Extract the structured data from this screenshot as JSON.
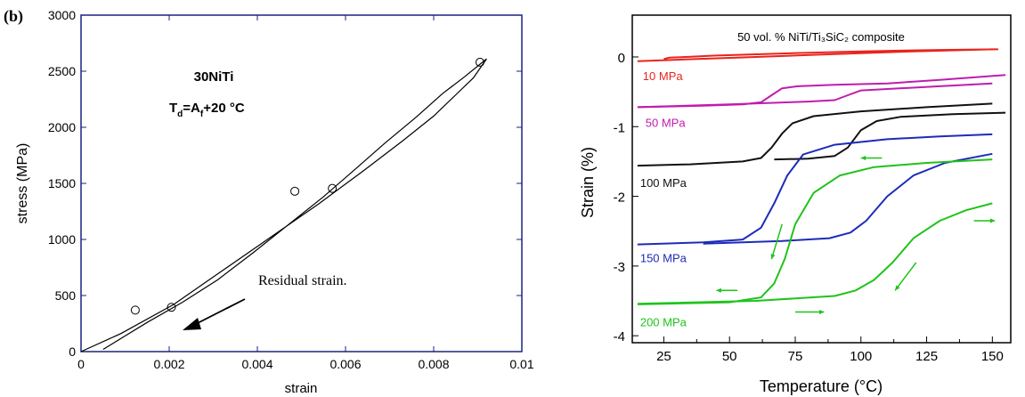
{
  "chart_data": [
    {
      "type": "line",
      "panel_label": "(b)",
      "title": "",
      "xlabel": "strain",
      "ylabel": "stress (MPa)",
      "xlim": [
        0,
        0.01
      ],
      "ylim": [
        0,
        3000
      ],
      "xticks": [
        {
          "value": 0,
          "label": "0"
        },
        {
          "value": 0.002,
          "label": "0.002"
        },
        {
          "value": 0.004,
          "label": "0.004"
        },
        {
          "value": 0.006,
          "label": "0.006"
        },
        {
          "value": 0.008,
          "label": "0.008"
        },
        {
          "value": 0.01,
          "label": "0.01"
        }
      ],
      "yticks": [
        {
          "value": 0,
          "label": "0"
        },
        {
          "value": 500,
          "label": "500"
        },
        {
          "value": 1000,
          "label": "1000"
        },
        {
          "value": 1500,
          "label": "1500"
        },
        {
          "value": 2000,
          "label": "2000"
        },
        {
          "value": 2500,
          "label": "2500"
        },
        {
          "value": 3000,
          "label": "3000"
        }
      ],
      "grid": false,
      "annotations": {
        "material": "30NiTi",
        "temp_main": "T",
        "temp_sub1": "d",
        "temp_mid": "=A",
        "temp_sub2": "f",
        "temp_end": "+20 °C",
        "arrow_text": "Residual strain."
      },
      "series": [
        {
          "color": "#000000",
          "points": [
            [
              0,
              0
            ],
            [
              0.0009,
              160
            ],
            [
              0.0021,
              420
            ],
            [
              0.0032,
              720
            ],
            [
              0.0043,
              1020
            ],
            [
              0.0054,
              1320
            ],
            [
              0.0064,
              1610
            ],
            [
              0.0073,
              1880
            ],
            [
              0.008,
              2100
            ],
            [
              0.0085,
              2290
            ],
            [
              0.0089,
              2440
            ],
            [
              0.0092,
              2610
            ],
            [
              0.0087,
              2450
            ],
            [
              0.0082,
              2300
            ],
            [
              0.0076,
              2090
            ],
            [
              0.0069,
              1860
            ],
            [
              0.0062,
              1620
            ],
            [
              0.0055,
              1380
            ],
            [
              0.0047,
              1130
            ],
            [
              0.0039,
              880
            ],
            [
              0.0031,
              640
            ],
            [
              0.0023,
              440
            ],
            [
              0.0015,
              260
            ],
            [
              0.001,
              140
            ],
            [
              0.0005,
              20
            ]
          ],
          "markers": [
            [
              0.00123,
              370
            ],
            [
              0.00205,
              395
            ],
            [
              0.00485,
              1430
            ],
            [
              0.0057,
              1455
            ],
            [
              0.00905,
              2580
            ]
          ]
        }
      ]
    },
    {
      "type": "line",
      "title": "50 vol. % NiTi/Ti₃SiC₂ composite",
      "xlabel": "Temperature (°C)",
      "ylabel": "Strain (%)",
      "xlim": [
        13,
        157
      ],
      "ylim": [
        -4.1,
        0.6
      ],
      "xticks": [
        25,
        50,
        75,
        100,
        125,
        150
      ],
      "yticks": [
        0,
        -1,
        -2,
        -3,
        -4
      ],
      "grid": false,
      "series": [
        {
          "name": "10 MPa",
          "color": "#e8241d",
          "points": [
            [
              15,
              -0.06
            ],
            [
              30,
              -0.04
            ],
            [
              60,
              0.0
            ],
            [
              90,
              0.04
            ],
            [
              120,
              0.08
            ],
            [
              150,
              0.11
            ],
            [
              152,
              0.11
            ],
            [
              130,
              0.1
            ],
            [
              100,
              0.08
            ],
            [
              70,
              0.05
            ],
            [
              45,
              0.02
            ],
            [
              27,
              -0.01
            ],
            [
              25,
              -0.03
            ]
          ]
        },
        {
          "name": "50 MPa",
          "color": "#c01cae",
          "points": [
            [
              15,
              -0.72
            ],
            [
              40,
              -0.7
            ],
            [
              55,
              -0.68
            ],
            [
              62,
              -0.65
            ],
            [
              66,
              -0.55
            ],
            [
              70,
              -0.45
            ],
            [
              76,
              -0.42
            ],
            [
              90,
              -0.4
            ],
            [
              110,
              -0.38
            ],
            [
              130,
              -0.33
            ],
            [
              155,
              -0.26
            ]
          ]
        },
        {
          "name": "50 MPa",
          "color": "#c01cae",
          "points": [
            [
              15,
              -0.72
            ],
            [
              50,
              -0.68
            ],
            [
              80,
              -0.64
            ],
            [
              90,
              -0.62
            ],
            [
              95,
              -0.55
            ],
            [
              100,
              -0.48
            ],
            [
              110,
              -0.46
            ],
            [
              130,
              -0.42
            ],
            [
              150,
              -0.38
            ]
          ]
        },
        {
          "name": "100 MPa",
          "color": "#111111",
          "points": [
            [
              15,
              -1.56
            ],
            [
              35,
              -1.54
            ],
            [
              55,
              -1.5
            ],
            [
              62,
              -1.45
            ],
            [
              66,
              -1.3
            ],
            [
              70,
              -1.1
            ],
            [
              74,
              -0.95
            ],
            [
              82,
              -0.85
            ],
            [
              100,
              -0.78
            ],
            [
              125,
              -0.72
            ],
            [
              150,
              -0.67
            ]
          ]
        },
        {
          "name": "100 MPa",
          "color": "#111111",
          "points": [
            [
              67,
              -1.47
            ],
            [
              80,
              -1.46
            ],
            [
              90,
              -1.42
            ],
            [
              95,
              -1.3
            ],
            [
              100,
              -1.05
            ],
            [
              106,
              -0.92
            ],
            [
              115,
              -0.86
            ],
            [
              135,
              -0.82
            ],
            [
              155,
              -0.8
            ]
          ]
        },
        {
          "name": "150 MPa",
          "color": "#1d2bb8",
          "points": [
            [
              15,
              -2.69
            ],
            [
              40,
              -2.66
            ],
            [
              55,
              -2.62
            ],
            [
              62,
              -2.45
            ],
            [
              67,
              -2.1
            ],
            [
              72,
              -1.7
            ],
            [
              78,
              -1.4
            ],
            [
              90,
              -1.26
            ],
            [
              110,
              -1.18
            ],
            [
              130,
              -1.14
            ],
            [
              150,
              -1.11
            ]
          ]
        },
        {
          "name": "150 MPa",
          "color": "#1d2bb8",
          "points": [
            [
              40,
              -2.68
            ],
            [
              70,
              -2.64
            ],
            [
              88,
              -2.6
            ],
            [
              96,
              -2.52
            ],
            [
              102,
              -2.35
            ],
            [
              110,
              -2.0
            ],
            [
              120,
              -1.7
            ],
            [
              132,
              -1.52
            ],
            [
              150,
              -1.39
            ]
          ]
        },
        {
          "name": "200 MPa",
          "color": "#1fc31a",
          "points": [
            [
              15,
              -3.55
            ],
            [
              50,
              -3.52
            ],
            [
              62,
              -3.45
            ],
            [
              67,
              -3.25
            ],
            [
              71,
              -2.9
            ],
            [
              75,
              -2.4
            ],
            [
              82,
              -1.95
            ],
            [
              92,
              -1.7
            ],
            [
              105,
              -1.58
            ],
            [
              125,
              -1.52
            ],
            [
              150,
              -1.47
            ]
          ]
        },
        {
          "name": "200 MPa",
          "color": "#1fc31a",
          "points": [
            [
              15,
              -3.54
            ],
            [
              60,
              -3.5
            ],
            [
              90,
              -3.43
            ],
            [
              98,
              -3.35
            ],
            [
              105,
              -3.2
            ],
            [
              112,
              -2.95
            ],
            [
              120,
              -2.6
            ],
            [
              130,
              -2.35
            ],
            [
              140,
              -2.2
            ],
            [
              150,
              -2.1
            ]
          ]
        }
      ],
      "series_labels": [
        {
          "text": "10 MPa",
          "color": "#e8241d",
          "x": 17,
          "y": -0.27
        },
        {
          "text": "50 MPa",
          "color": "#c01cae",
          "x": 18,
          "y": -0.94
        },
        {
          "text": "100 MPa",
          "color": "#111111",
          "x": 16,
          "y": -1.8
        },
        {
          "text": "150 MPa",
          "color": "#1d2bb8",
          "x": 16,
          "y": -2.88
        },
        {
          "text": "200 MPa",
          "color": "#1fc31a",
          "x": 16,
          "y": -3.8
        }
      ],
      "direction_arrows": [
        {
          "from": [
            108,
            -1.45
          ],
          "to": [
            100,
            -1.45
          ],
          "color": "#1fc31a"
        },
        {
          "from": [
            70,
            -2.4
          ],
          "to": [
            66,
            -2.9
          ],
          "color": "#1fc31a"
        },
        {
          "from": [
            143,
            -2.35
          ],
          "to": [
            151,
            -2.35
          ],
          "color": "#1fc31a"
        },
        {
          "from": [
            121,
            -2.95
          ],
          "to": [
            113,
            -3.35
          ],
          "color": "#1fc31a"
        },
        {
          "from": [
            53,
            -3.35
          ],
          "to": [
            45,
            -3.35
          ],
          "color": "#1fc31a"
        },
        {
          "from": [
            75,
            -3.66
          ],
          "to": [
            86,
            -3.66
          ],
          "color": "#1fc31a"
        }
      ]
    }
  ]
}
